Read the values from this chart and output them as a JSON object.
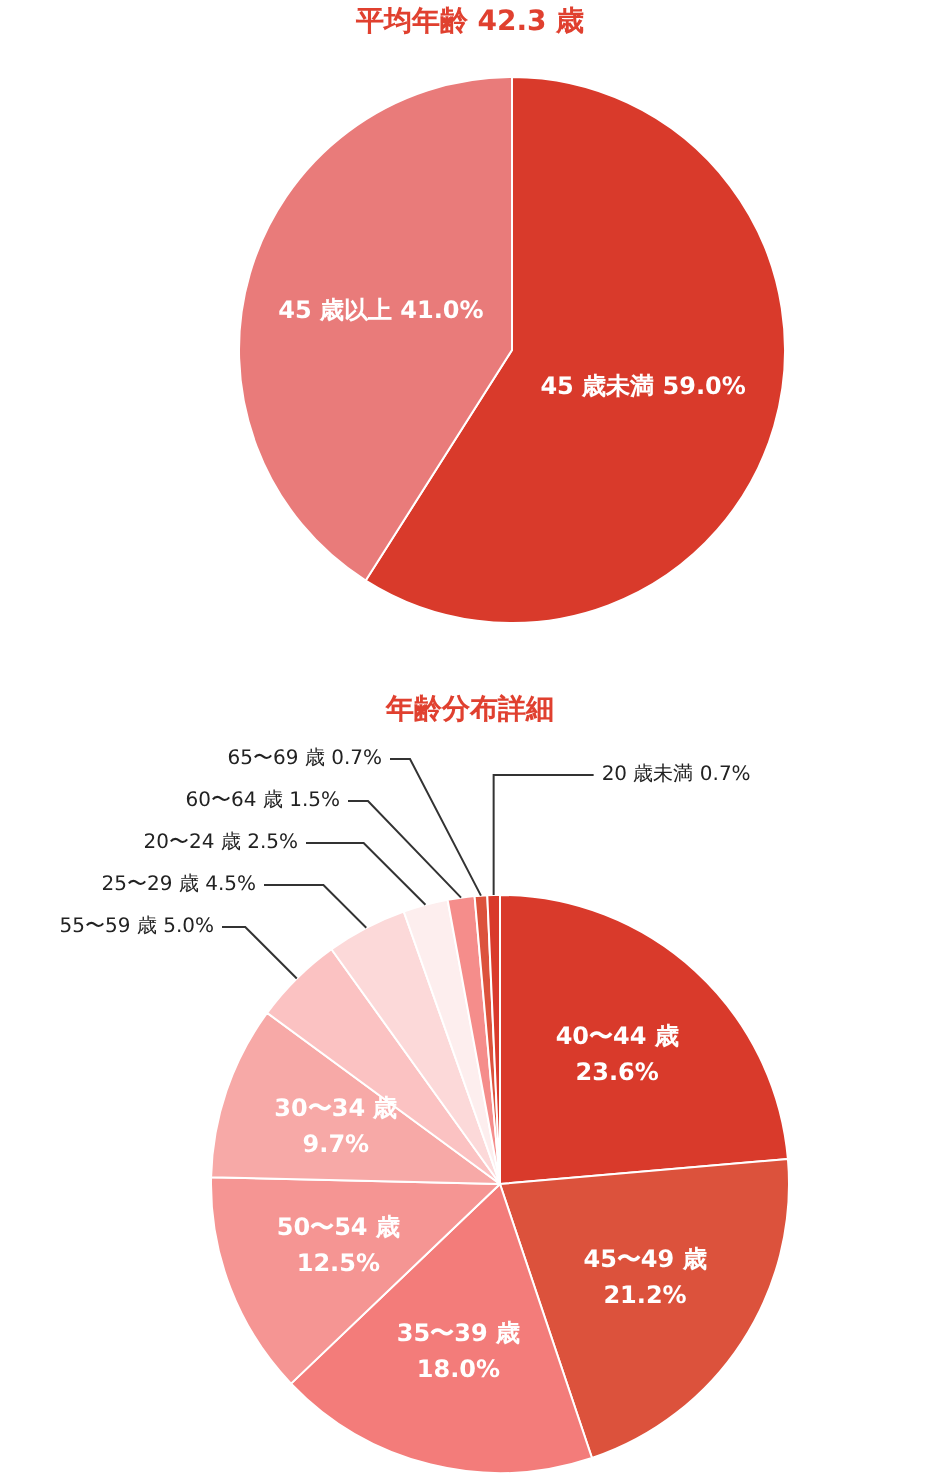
{
  "chart_data": [
    {
      "type": "pie",
      "title": "平均年齢 42.3 歳",
      "categories": [
        "45 歳未満",
        "45 歳以上"
      ],
      "values": [
        59.0,
        41.0
      ],
      "value_labels": [
        "59.0%",
        "41.0%"
      ],
      "colors": [
        "#d93a2b",
        "#e97b7a"
      ]
    },
    {
      "type": "pie",
      "title": "年齢分布詳細",
      "categories": [
        "40〜44 歳",
        "45〜49 歳",
        "35〜39 歳",
        "50〜54 歳",
        "30〜34 歳",
        "55〜59 歳",
        "25〜29 歳",
        "20〜24 歳",
        "60〜64 歳",
        "65〜69 歳",
        "20 歳未満"
      ],
      "values": [
        23.6,
        21.2,
        18.0,
        12.5,
        9.7,
        5.0,
        4.5,
        2.5,
        1.5,
        0.7,
        0.7
      ],
      "value_labels": [
        "23.6%",
        "21.2%",
        "18.0%",
        "12.5%",
        "9.7%",
        "5.0%",
        "4.5%",
        "2.5%",
        "1.5%",
        "0.7%",
        "0.7%"
      ],
      "colors": [
        "#d93a2b",
        "#dc523c",
        "#f37c7a",
        "#f59593",
        "#f7a9a7",
        "#fbc2c2",
        "#fcd9d9",
        "#fdeeee",
        "#f58d8b",
        "#dc523c",
        "#d93a2b"
      ]
    }
  ]
}
